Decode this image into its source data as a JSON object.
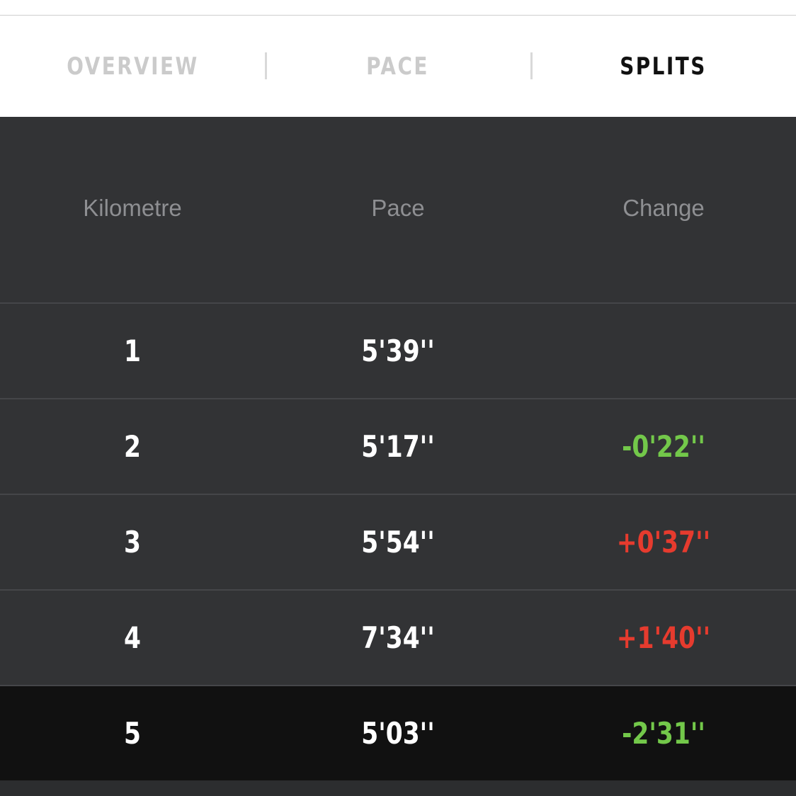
{
  "tabs": [
    {
      "label": "OVERVIEW",
      "active": false
    },
    {
      "label": "PACE",
      "active": false
    },
    {
      "label": "SPLITS",
      "active": true
    }
  ],
  "table": {
    "headers": [
      "Kilometre",
      "Pace",
      "Change"
    ],
    "rows": [
      {
        "kilometre": "1",
        "pace": "5'39''",
        "change": ""
      },
      {
        "kilometre": "2",
        "pace": "5'17''",
        "change": "-0'22''"
      },
      {
        "kilometre": "3",
        "pace": "5'54''",
        "change": "+0'37''"
      },
      {
        "kilometre": "4",
        "pace": "7'34''",
        "change": "+1'40''"
      },
      {
        "kilometre": "5",
        "pace": "5'03''",
        "change": "-2'31''"
      }
    ]
  },
  "colors": {
    "faster": "#73c84a",
    "slower": "#e63b2e",
    "highlight_row": "#111111"
  }
}
